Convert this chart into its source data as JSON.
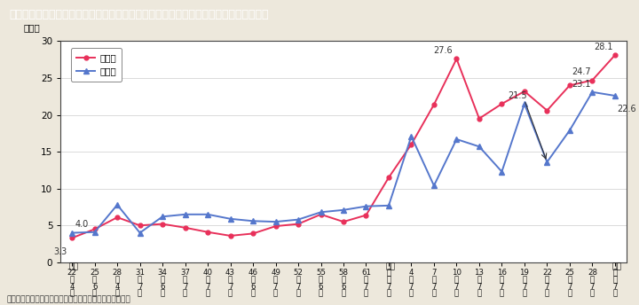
{
  "title": "Ｉ－１－２図　参議院議員通常選挙における候補者，当選者に占める女性の割合の推移",
  "title_bg_color": "#3aafca",
  "title_text_color": "#ffffff",
  "background_color": "#ede8dc",
  "plot_bg_color": "#ffffff",
  "ylabel": "（％）",
  "ylim": [
    0,
    30
  ],
  "yticks": [
    0,
    5,
    10,
    15,
    20,
    25,
    30
  ],
  "x_year_labels": [
    "22",
    "25",
    "28",
    "31",
    "34",
    "37",
    "40",
    "43",
    "46",
    "49",
    "52",
    "55",
    "58",
    "61",
    "元",
    "4",
    "7",
    "10",
    "13",
    "16",
    "19",
    "22",
    "25",
    "28",
    "元"
  ],
  "x_nen_labels": [
    "年",
    "年",
    "年",
    "年",
    "年",
    "年",
    "年",
    "年",
    "年",
    "年",
    "年",
    "年",
    "年",
    "年",
    "年",
    "年",
    "年",
    "年",
    "年",
    "年",
    "年",
    "年",
    "年",
    "年",
    "年"
  ],
  "x_month_num": [
    "4",
    "6",
    "4",
    "7",
    "6",
    "7",
    "7",
    "7",
    "6",
    "7",
    "7",
    "6",
    "6",
    "7",
    "7",
    "7",
    "7",
    "7",
    "7",
    "7",
    "7",
    "7",
    "7",
    "7",
    "7"
  ],
  "x_month_labels": [
    "月",
    "月",
    "月",
    "月",
    "月",
    "月",
    "月",
    "月",
    "月",
    "月",
    "月",
    "月",
    "月",
    "月",
    "月",
    "月",
    "月",
    "月",
    "月",
    "月",
    "月",
    "月",
    "月",
    "月",
    "月"
  ],
  "era_labels": [
    {
      "text": "昭和",
      "x": 0
    },
    {
      "text": "平成",
      "x": 14
    },
    {
      "text": "令和",
      "x": 24
    }
  ],
  "candidates": [
    3.3,
    4.5,
    6.1,
    5.0,
    5.2,
    4.7,
    4.1,
    3.6,
    3.9,
    4.9,
    5.2,
    6.5,
    5.5,
    6.4,
    11.5,
    16.0,
    21.4,
    27.6,
    19.5,
    21.5,
    23.2,
    20.6,
    24.0,
    24.7,
    28.1
  ],
  "winners": [
    4.0,
    4.1,
    7.8,
    4.0,
    6.2,
    6.5,
    6.5,
    5.9,
    5.6,
    5.5,
    5.8,
    6.8,
    7.1,
    7.6,
    7.7,
    17.1,
    10.4,
    16.7,
    15.7,
    12.3,
    21.5,
    13.6,
    17.9,
    23.1,
    22.6
  ],
  "candidate_color": "#e8305a",
  "winner_color": "#5577cc",
  "candidate_label": "候補者",
  "winner_label": "当選者",
  "note": "（備考）総務省「参議院議員通常選挙結果調」より作成。"
}
